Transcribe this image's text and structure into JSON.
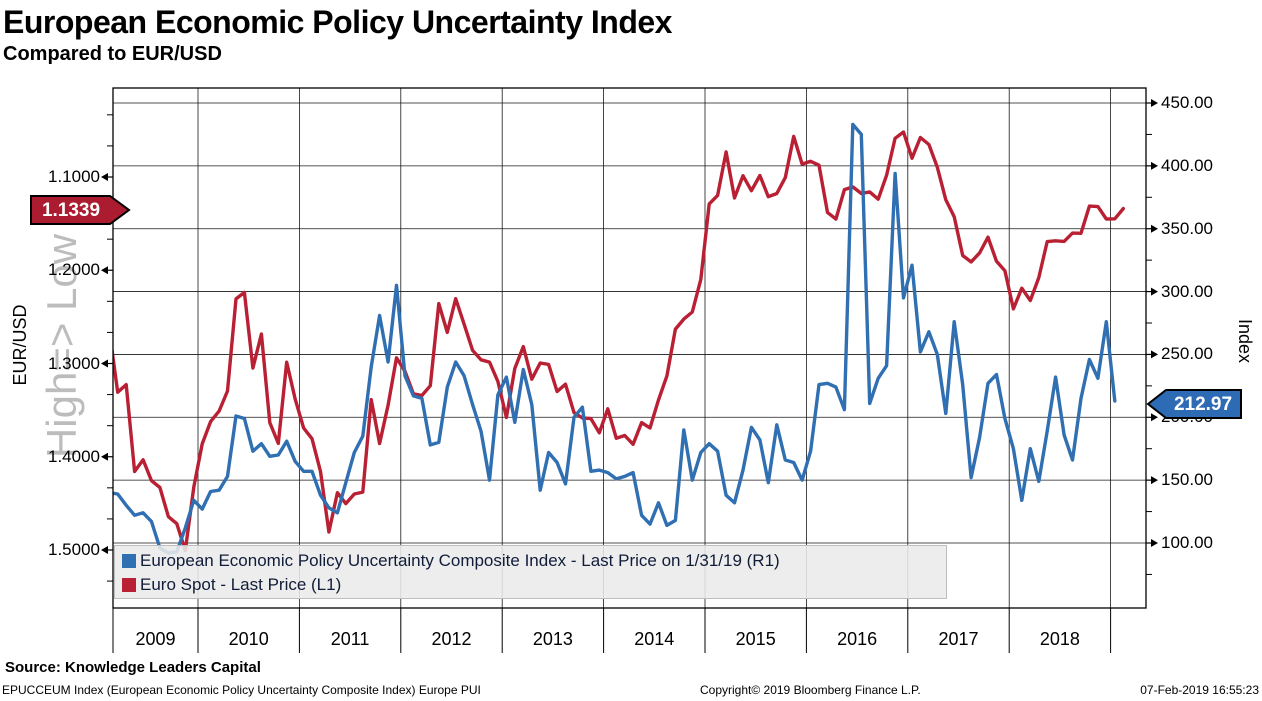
{
  "header": {
    "title": "European Economic Policy Uncertainty Index",
    "subtitle": "Compared to EUR/USD"
  },
  "watermark": "High=> Low",
  "chart_data": {
    "type": "line",
    "title": "European Economic Policy Uncertainty Index",
    "subtitle": "Compared to EUR/USD",
    "frequency": "monthly",
    "start_month": "2009-02",
    "x_axis": {
      "years": [
        "2009",
        "2010",
        "2011",
        "2012",
        "2013",
        "2014",
        "2015",
        "2016",
        "2017",
        "2018"
      ]
    },
    "left_axis": {
      "title": "EUR/USD",
      "inverted": true,
      "tick_labels": [
        "1.1000",
        "1.2000",
        "1.3000",
        "1.4000",
        "1.5000"
      ],
      "tick_values": [
        1.1,
        1.2,
        1.3,
        1.4,
        1.5
      ]
    },
    "right_axis": {
      "title": "Index",
      "tick_labels": [
        "450.00",
        "400.00",
        "350.00",
        "300.00",
        "250.00",
        "200.00",
        "150.00",
        "100.00"
      ],
      "tick_values": [
        450,
        400,
        350,
        300,
        250,
        200,
        150,
        100
      ]
    },
    "series": [
      {
        "name": "Euro Spot - Last Price (L1)",
        "axis": "left",
        "color": "#b92033",
        "last_label": "1.1339",
        "values": [
          1.2644,
          1.3308,
          1.3226,
          1.4158,
          1.4033,
          1.4257,
          1.433,
          1.4643,
          1.4718,
          1.5005,
          1.4326,
          1.3862,
          1.3623,
          1.351,
          1.3295,
          1.2307,
          1.2238,
          1.3049,
          1.2684,
          1.3634,
          1.3857,
          1.2986,
          1.3379,
          1.3692,
          1.3806,
          1.4158,
          1.4807,
          1.4385,
          1.4502,
          1.4399,
          1.4379,
          1.3387,
          1.3858,
          1.3446,
          1.2939,
          1.3084,
          1.3325,
          1.3343,
          1.3238,
          1.2358,
          1.2667,
          1.2304,
          1.2579,
          1.286,
          1.296,
          1.2985,
          1.3193,
          1.3579,
          1.3054,
          1.2819,
          1.3168,
          1.2995,
          1.301,
          1.33,
          1.3222,
          1.3527,
          1.3584,
          1.3591,
          1.3743,
          1.3486,
          1.3802,
          1.3772,
          1.3867,
          1.3634,
          1.3692,
          1.339,
          1.3133,
          1.2631,
          1.2524,
          1.2448,
          1.2098,
          1.1288,
          1.1197,
          1.0731,
          1.1224,
          1.0986,
          1.1147,
          1.0984,
          1.1211,
          1.1177,
          1.1006,
          1.0565,
          1.0862,
          1.0832,
          1.0873,
          1.138,
          1.1451,
          1.1135,
          1.1106,
          1.1177,
          1.116,
          1.1238,
          1.0981,
          1.0585,
          1.0517,
          1.0798,
          1.0576,
          1.0652,
          1.0895,
          1.1244,
          1.1426,
          1.1842,
          1.191,
          1.1814,
          1.1646,
          1.1904,
          1.2005,
          1.2415,
          1.2193,
          1.2324,
          1.2079,
          1.1693,
          1.1684,
          1.1691,
          1.1602,
          1.1604,
          1.1312,
          1.1317,
          1.145,
          1.1448,
          1.1339
        ]
      },
      {
        "name": "European Economic Policy Uncertainty Composite Index - Last Price on 1/31/19 (R1)",
        "axis": "right",
        "color": "#2f6fb2",
        "last_label": "212.97",
        "values": [
          140,
          139,
          130,
          122,
          124,
          117,
          96,
          92,
          93,
          112,
          134,
          127,
          141,
          142,
          153,
          201,
          199,
          173,
          179,
          169,
          170,
          181,
          165,
          157,
          157,
          138,
          128,
          124,
          148,
          172,
          185,
          240,
          281,
          244,
          305,
          233,
          217,
          215,
          178,
          180,
          224,
          244,
          233,
          210,
          189,
          150,
          218,
          232,
          196,
          238,
          210,
          142,
          172,
          164,
          147,
          200,
          208,
          157,
          158,
          156,
          151,
          153,
          156,
          122,
          115,
          132,
          114,
          118,
          190,
          150,
          172,
          179,
          173,
          138,
          132,
          158,
          192,
          182,
          148,
          194,
          166,
          164,
          150,
          173,
          226,
          227,
          224,
          206,
          433,
          425,
          211,
          231,
          241,
          394,
          295,
          321,
          252,
          268,
          250,
          203,
          276,
          226,
          152,
          184,
          227,
          234,
          199,
          175,
          134,
          175,
          149,
          189,
          232,
          186,
          166,
          215,
          246,
          231,
          276,
          212.97
        ]
      }
    ],
    "legend_position": "bottom-left-inside",
    "grid": true
  },
  "tags": {
    "left": {
      "text": "1.1339",
      "color": "#ac1c30"
    },
    "right": {
      "text": "212.97",
      "color": "#2d6bb4"
    }
  },
  "footer": {
    "source": "Source: Knowledge Leaders Capital",
    "ticker_note": "EPUCCEUM Index (European Economic Policy Uncertainty Composite Index) Europe PUI",
    "copyright": "Copyright© 2019 Bloomberg Finance L.P.",
    "timestamp": "07-Feb-2019 16:55:23"
  }
}
